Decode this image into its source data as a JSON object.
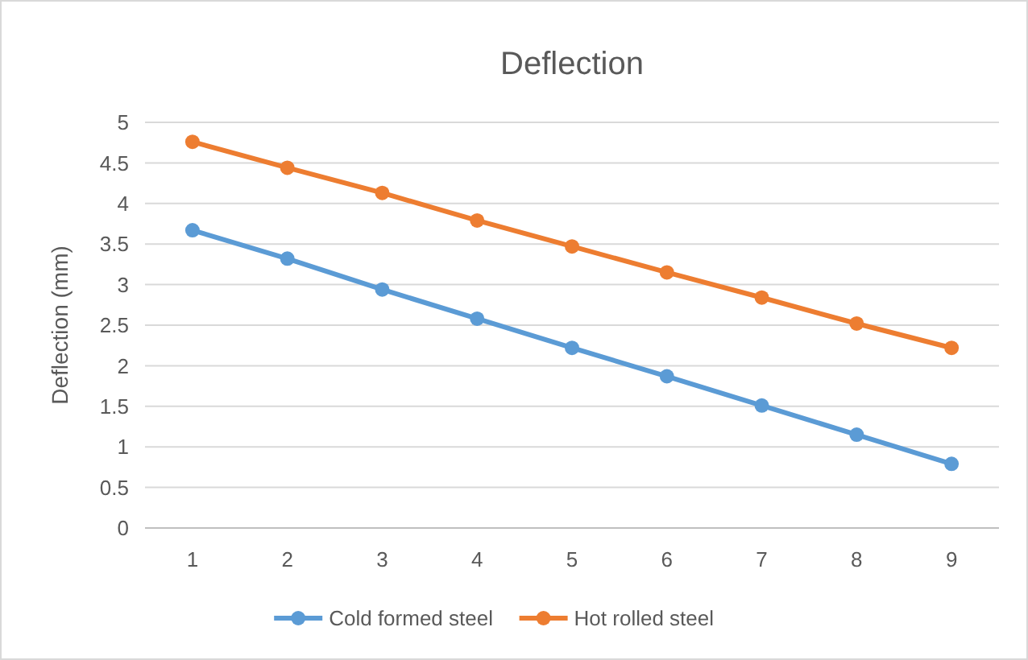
{
  "chart_data": {
    "type": "line",
    "title": "Deflection",
    "ylabel": "Deflection (mm)",
    "categories": [
      "1",
      "2",
      "3",
      "4",
      "5",
      "6",
      "7",
      "8",
      "9"
    ],
    "series": [
      {
        "name": "Cold formed steel",
        "color": "#5b9bd5",
        "values": [
          3.67,
          3.32,
          2.94,
          2.58,
          2.22,
          1.87,
          1.51,
          1.15,
          0.79
        ]
      },
      {
        "name": "Hot rolled steel",
        "color": "#ed7d31",
        "values": [
          4.76,
          4.44,
          4.13,
          3.79,
          3.47,
          3.15,
          2.84,
          2.52,
          2.22
        ]
      }
    ],
    "ylim": [
      0,
      5
    ],
    "yticks": [
      0,
      0.5,
      1,
      1.5,
      2,
      2.5,
      3,
      3.5,
      4,
      4.5,
      5
    ],
    "grid": "y",
    "legend": "bottom",
    "marker": "circle",
    "line_style": "solid"
  }
}
